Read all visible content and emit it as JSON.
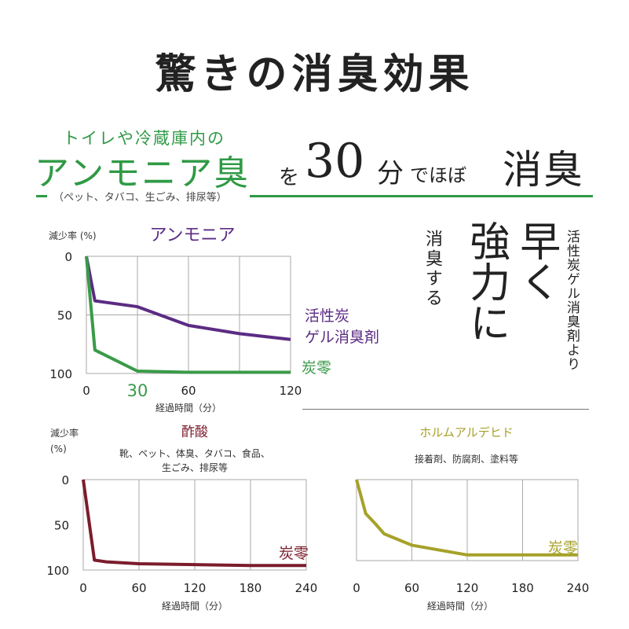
{
  "header": {
    "title": "驚きの消臭効果",
    "subline": "トイレや冷蔵庫内の",
    "ammonia_odor": "アンモニア臭",
    "wo": "を",
    "thirty": "30",
    "fun": "分",
    "dehobo": "でほぼ",
    "shoshu": "消臭",
    "examples": "（ペット、タバコ、生ごみ、排尿等）"
  },
  "vertical": {
    "shoshu_suru": "消臭する",
    "hayaku": "早く",
    "kyoryoku": "強力に",
    "comparison": "活性炭ゲル消臭剤より"
  },
  "chart_data": [
    {
      "type": "line",
      "title": "アンモニア",
      "ylabel": "減少率 (%)",
      "xlabel": "経過時間（分）",
      "xlim": [
        0,
        120
      ],
      "ylim": [
        0,
        100
      ],
      "y_inverted": true,
      "xticks": [
        0,
        60,
        120
      ],
      "yticks": [
        0,
        50,
        100
      ],
      "highlight_tick": "30",
      "grid": true,
      "series": [
        {
          "name": "活性炭ゲル消臭剤",
          "label_line1": "活性炭",
          "label_line2": "ゲル消臭剤",
          "color": "#5b2c83",
          "x": [
            0,
            5,
            30,
            60,
            90,
            120
          ],
          "y": [
            0,
            38,
            43,
            59,
            66,
            71
          ]
        },
        {
          "name": "炭零",
          "color": "#3a9a48",
          "x": [
            0,
            5,
            30,
            60,
            90,
            120
          ],
          "y": [
            0,
            80,
            98,
            99,
            99,
            99
          ]
        }
      ]
    },
    {
      "type": "line",
      "title": "酢酸",
      "ylabel": "減少率",
      "ylabel2": "(%)",
      "examples_line1": "靴、ペット、体臭、タバコ、食品、",
      "examples_line2": "生ごみ、排尿等",
      "xlabel": "経過時間（分）",
      "xlim": [
        0,
        240
      ],
      "ylim": [
        0,
        100
      ],
      "y_inverted": true,
      "xticks": [
        0,
        60,
        120,
        180,
        240
      ],
      "yticks": [
        0,
        50,
        100
      ],
      "grid": true,
      "series": [
        {
          "name": "炭零",
          "color": "#7b1c2c",
          "x": [
            0,
            12,
            25,
            60,
            120,
            180,
            240
          ],
          "y": [
            0,
            89,
            91,
            93,
            94,
            95,
            95
          ]
        }
      ]
    },
    {
      "type": "line",
      "title": "ホルムアルデヒド",
      "examples_line1": "接着剤、防腐剤、塗料等",
      "xlabel": "経過時間（分）",
      "xlim": [
        0,
        240
      ],
      "ylim": [
        0,
        100
      ],
      "y_inverted": true,
      "xticks": [
        0,
        60,
        120,
        180,
        240
      ],
      "yticks": [],
      "grid": true,
      "series": [
        {
          "name": "炭零",
          "color": "#a6a12a",
          "x": [
            0,
            10,
            20,
            30,
            60,
            120,
            180,
            240
          ],
          "y": [
            0,
            42,
            54,
            67,
            81,
            93,
            93,
            93
          ]
        }
      ]
    }
  ]
}
